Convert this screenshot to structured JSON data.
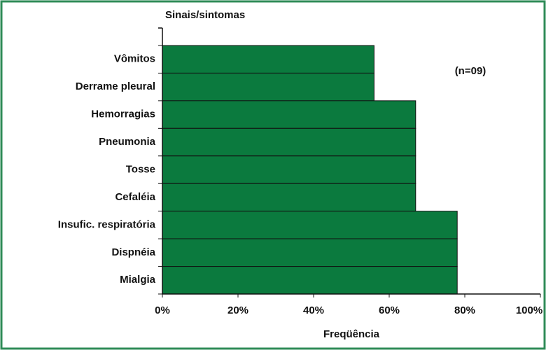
{
  "chart_data": {
    "type": "bar",
    "orientation": "horizontal",
    "y_axis_label": "Sinais/sintomas",
    "x_axis_label": "Freqüência",
    "annotation": "(n=09)",
    "categories": [
      "Vômitos",
      "Derrame pleural",
      "Hemorragias",
      "Pneumonia",
      "Tosse",
      "Cefaléia",
      "Insufic. respiratória",
      "Dispnéia",
      "Mialgia"
    ],
    "values": [
      56,
      56,
      67,
      67,
      67,
      67,
      78,
      78,
      78
    ],
    "color": "#0b7a3e",
    "frame_color": "#2e8b57",
    "xlim": [
      0,
      100
    ],
    "xticks": [
      {
        "value": 0,
        "label": "0%"
      },
      {
        "value": 20,
        "label": "20%"
      },
      {
        "value": 40,
        "label": "40%"
      },
      {
        "value": 60,
        "label": "60%"
      },
      {
        "value": 80,
        "label": "80%"
      },
      {
        "value": 100,
        "label": "100%"
      }
    ],
    "grid": false
  }
}
